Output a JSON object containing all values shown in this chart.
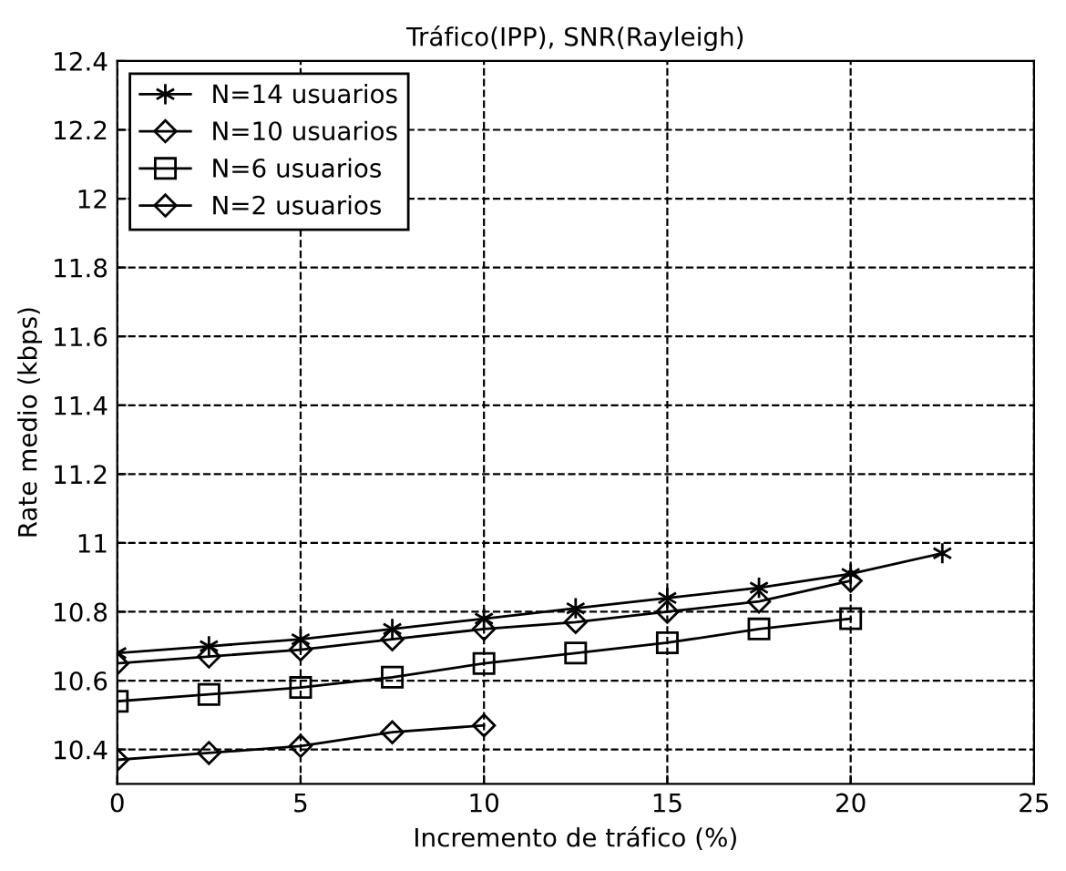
{
  "chart_data": {
    "type": "line",
    "title": "Tráfico(IPP), SNR(Rayleigh)",
    "xlabel": "Incremento de tráfico (%)",
    "ylabel": "Rate medio (kbps)",
    "series": [
      {
        "name": "N=14 usuarios",
        "color": "#000000",
        "marker": "cross",
        "x": [
          0,
          2.5,
          5,
          7.5,
          10,
          12.5,
          15,
          17.5,
          20,
          22.5
        ],
        "values": [
          10.68,
          10.7,
          10.72,
          10.75,
          10.78,
          10.81,
          10.84,
          10.87,
          10.91,
          10.97
        ]
      },
      {
        "name": "N=10 usuarios",
        "color": "#000000",
        "marker": "diamond",
        "x": [
          0,
          2.5,
          5,
          7.5,
          10,
          12.5,
          15,
          17.5,
          20
        ],
        "values": [
          10.65,
          10.67,
          10.69,
          10.72,
          10.75,
          10.77,
          10.8,
          10.83,
          10.89
        ]
      },
      {
        "name": "N=6 usuarios",
        "color": "#000000",
        "marker": "square",
        "x": [
          0,
          2.5,
          5,
          7.5,
          10,
          12.5,
          15,
          17.5,
          20
        ],
        "values": [
          10.54,
          10.56,
          10.58,
          10.61,
          10.65,
          10.68,
          10.71,
          10.75,
          10.78
        ]
      },
      {
        "name": "N=2 usuarios",
        "color": "#000000",
        "marker": "diamond",
        "x": [
          0,
          2.5,
          5,
          7.5,
          10
        ],
        "values": [
          10.37,
          10.39,
          10.41,
          10.45,
          10.47
        ]
      }
    ],
    "xlim": [
      0,
      25
    ],
    "xticks": [
      0,
      5,
      10,
      15,
      20,
      25
    ],
    "ylim": [
      10.3,
      12.4
    ],
    "yticks": [
      10.4,
      10.6,
      10.8,
      11,
      11.2,
      11.4,
      11.6,
      11.8,
      12,
      12.2,
      12.4
    ],
    "grid": true,
    "legend": "top left",
    "line_style": "solid"
  }
}
